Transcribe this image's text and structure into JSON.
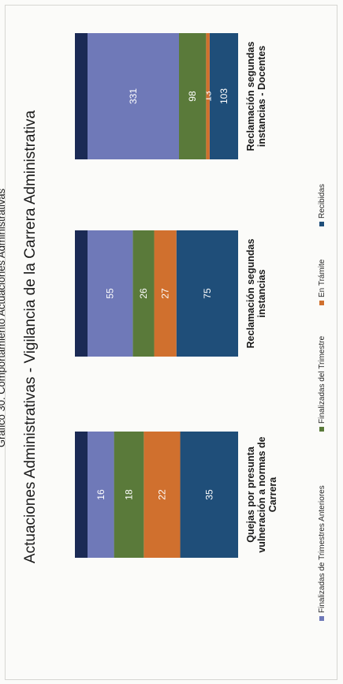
{
  "header_cut": "Gráfico 30. Comportamiento Actuaciones Administrativas",
  "chart_data": {
    "type": "bar",
    "stacked": true,
    "orientation": "vertical-in-rotated-page",
    "title": "Actuaciones Administrativas - Vigilancia de la Carrera Administrativa",
    "categories": [
      "Quejas por presunta vulneración a normas de Carrera",
      "Reclamación segundas instancias",
      "Reclamación segundas instancias - Docentes"
    ],
    "series": [
      {
        "name": "Recibidas",
        "color": "#1f4e79",
        "values": [
          35,
          75,
          103
        ]
      },
      {
        "name": "En Trámite",
        "color": "#d0702e",
        "values": [
          22,
          27,
          13
        ]
      },
      {
        "name": "Finalizadas del Trimestre",
        "color": "#5a7a3a",
        "values": [
          18,
          26,
          98
        ]
      },
      {
        "name": "Finalizadas de Trimestres Anteriores",
        "color": "#6f79b8",
        "values": [
          16,
          55,
          331
        ]
      }
    ],
    "legend_order": [
      "Finalizadas de Trimestres Anteriores",
      "Finalizadas del Trimestre",
      "En Trámite",
      "Recibidas"
    ],
    "legend_position": "bottom",
    "grid": false,
    "axes_visible": false
  }
}
